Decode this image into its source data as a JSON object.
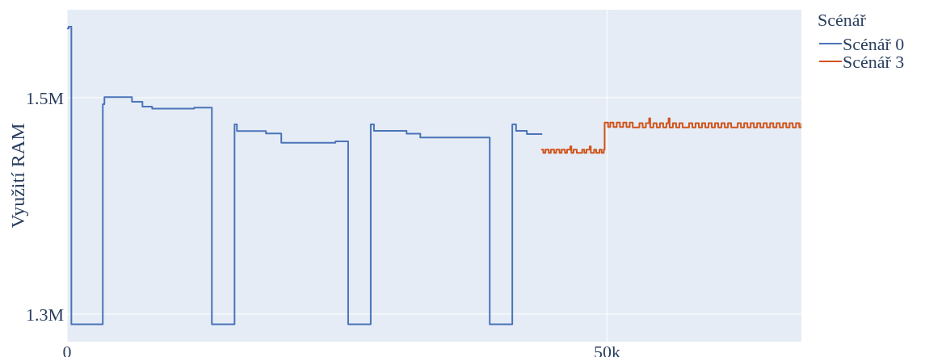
{
  "chart_data": {
    "type": "step",
    "ylabel": "Využití RAM",
    "legend_title": "Scénář",
    "legend": "top right",
    "grid": true,
    "marker": "none",
    "line_style": "solid",
    "xlim": [
      0,
      68000
    ],
    "xticks": [
      {
        "value": 0,
        "label": "0"
      },
      {
        "value": 50000,
        "label": "50k"
      }
    ],
    "ylim": [
      1274600,
      1581300
    ],
    "yticks": [
      {
        "value": 1300000,
        "label": "1.3M"
      },
      {
        "value": 1500000,
        "label": "1.5M"
      }
    ],
    "series": [
      {
        "name": "Scénář 0",
        "color": "#4a74b8",
        "x": [
          0,
          150,
          400,
          3310,
          3460,
          6010,
          6980,
          7880,
          11770,
          13410,
          15510,
          15730,
          18420,
          19840,
          24850,
          26030,
          28120,
          28420,
          31440,
          32710,
          39140,
          41230,
          41580,
          42580,
          44000
        ],
        "values": [
          1564000,
          1565600,
          1290600,
          1494000,
          1500500,
          1496300,
          1491800,
          1489800,
          1490800,
          1290600,
          1475400,
          1469200,
          1467000,
          1458400,
          1459700,
          1290600,
          1475400,
          1469400,
          1466700,
          1463200,
          1290600,
          1475400,
          1469400,
          1466400,
          1466400
        ]
      },
      {
        "name": "Scénář 3",
        "color": "#d1541b",
        "x": [
          43900,
          44100,
          44300,
          44600,
          44800,
          45100,
          45300,
          45600,
          45800,
          46100,
          46300,
          46600,
          46700,
          46900,
          47200,
          47400,
          47700,
          47900,
          48100,
          48400,
          48500,
          48800,
          49000,
          49300,
          49500,
          49700,
          49780,
          50100,
          50300,
          50600,
          50900,
          51200,
          51500,
          51800,
          52100,
          52380,
          52700,
          53000,
          53300,
          53600,
          53900,
          54000,
          54300,
          54600,
          54900,
          55200,
          55500,
          55700,
          55800,
          56100,
          56400,
          56700,
          57000,
          57300,
          57600,
          57900,
          58200,
          58500,
          58800,
          59100,
          59400,
          59700,
          60000,
          60300,
          60600,
          60900,
          61200,
          61500,
          61800,
          62100,
          62400,
          62700,
          63000,
          63300,
          63600,
          63900,
          64200,
          64500,
          64800,
          65100,
          65400,
          65700,
          66000,
          66300,
          66600,
          66900,
          67200,
          67500,
          67800,
          68000
        ],
        "values": [
          1452000,
          1449000,
          1452000,
          1449000,
          1452000,
          1449000,
          1452000,
          1449000,
          1452000,
          1449000,
          1452000,
          1455000,
          1449000,
          1452000,
          1449000,
          1449000,
          1452000,
          1449000,
          1452000,
          1455000,
          1449000,
          1452000,
          1449000,
          1452000,
          1449000,
          1452000,
          1477000,
          1473000,
          1477000,
          1473000,
          1477000,
          1473000,
          1477000,
          1473000,
          1477000,
          1472500,
          1472500,
          1476500,
          1472500,
          1476500,
          1481000,
          1472500,
          1476500,
          1472500,
          1476500,
          1472500,
          1476500,
          1481000,
          1472500,
          1476500,
          1472500,
          1476500,
          1472500,
          1472500,
          1476500,
          1472500,
          1476500,
          1472500,
          1476500,
          1472500,
          1476500,
          1472500,
          1476500,
          1472500,
          1476500,
          1472500,
          1476500,
          1472500,
          1472500,
          1476500,
          1472500,
          1476500,
          1472500,
          1476500,
          1472500,
          1476500,
          1472500,
          1476500,
          1472500,
          1476500,
          1472500,
          1476500,
          1472500,
          1476500,
          1472500,
          1476500,
          1472500,
          1476500,
          1472500,
          1476500
        ]
      }
    ]
  }
}
